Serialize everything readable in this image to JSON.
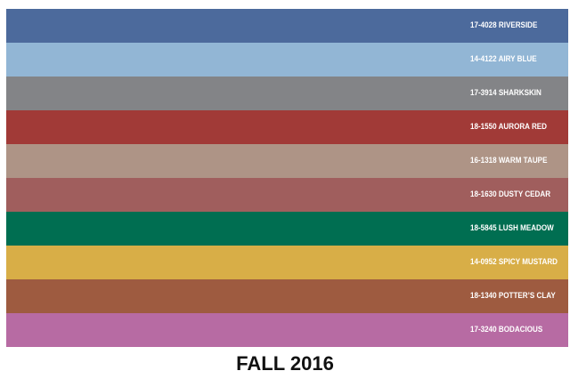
{
  "swatches": [
    {
      "label": "17-4028 RIVERSIDE",
      "color": "#4c6a9c"
    },
    {
      "label": "14-4122 AIRY BLUE",
      "color": "#92b6d5"
    },
    {
      "label": "17-3914 SHARKSKIN",
      "color": "#838487"
    },
    {
      "label": "18-1550 AURORA RED",
      "color": "#a13a37"
    },
    {
      "label": "16-1318 WARM TAUPE",
      "color": "#ae9486"
    },
    {
      "label": "18-1630 DUSTY CEDAR",
      "color": "#a05e5d"
    },
    {
      "label": "18-5845 LUSH MEADOW",
      "color": "#006e51"
    },
    {
      "label": "14-0952 SPICY MUSTARD",
      "color": "#d8ae47"
    },
    {
      "label": "18-1340 POTTER’S CLAY",
      "color": "#9e5b40"
    },
    {
      "label": "17-3240 BODACIOUS",
      "color": "#b76ba3"
    }
  ],
  "title": "FALL 2016"
}
